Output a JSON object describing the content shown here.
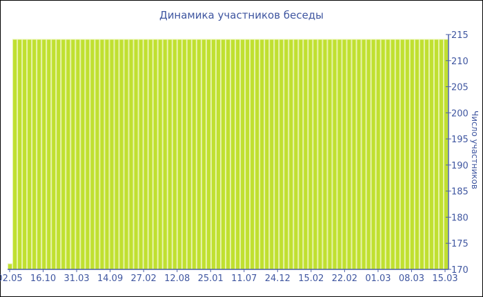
{
  "chart_data": {
    "type": "bar",
    "title": "Динамика участников беседы",
    "ylabel": "Число участников",
    "xlabel": "",
    "ylim": [
      170,
      215
    ],
    "yticks": [
      170,
      175,
      180,
      185,
      190,
      195,
      200,
      205,
      210,
      215
    ],
    "y_axis_side": "right",
    "grid": false,
    "x_tick_labels": [
      "02.05",
      "16.10",
      "31.03",
      "14.09",
      "27.02",
      "12.08",
      "25.01",
      "11.07",
      "24.12",
      "15.02",
      "22.02",
      "01.03",
      "08.03",
      "15.03"
    ],
    "values": [
      171,
      214,
      214,
      214,
      214,
      214,
      214,
      214,
      214,
      214,
      214,
      214,
      214,
      214,
      214,
      214,
      214,
      214,
      214,
      214,
      214,
      214,
      214,
      214,
      214,
      214,
      214,
      214,
      214,
      214,
      214,
      214,
      214,
      214,
      214,
      214,
      214,
      214,
      214,
      214,
      214,
      214,
      214,
      214,
      214,
      214,
      214,
      214,
      214,
      214,
      214,
      214,
      214,
      214,
      214,
      214,
      214,
      214,
      214,
      214,
      214,
      214,
      214,
      214,
      214,
      214,
      214,
      214,
      214,
      214,
      214,
      214,
      214,
      214,
      214,
      214,
      214,
      214,
      214,
      214,
      214,
      214,
      214,
      214,
      214,
      214,
      214,
      214,
      214,
      214,
      214
    ],
    "colors": {
      "bar": "#c0e030",
      "bar_gap": "#e6f3a8",
      "axis": "#4a5fa8",
      "text": "#3f56a0"
    }
  }
}
